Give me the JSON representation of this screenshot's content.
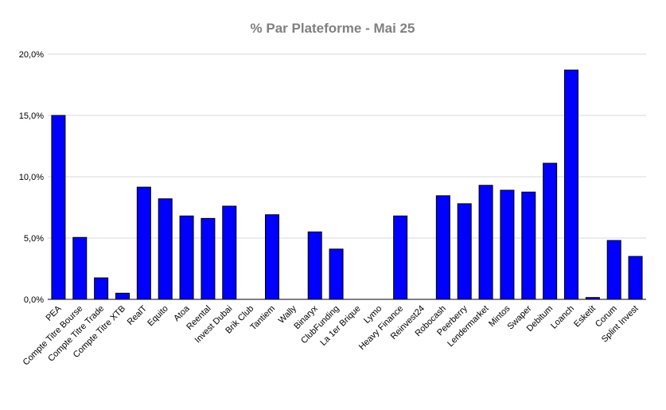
{
  "chart_data": {
    "type": "bar",
    "title": "% Par Plateforme - Mai 25",
    "xlabel": "",
    "ylabel": "",
    "ylim": [
      0,
      20
    ],
    "yticks": [
      0,
      5,
      10,
      15,
      20
    ],
    "ytick_labels": [
      "0,0%",
      "5,0%",
      "10,0%",
      "15,0%",
      "20,0%"
    ],
    "grid": true,
    "legend": "none",
    "bar_color": "#0000ff",
    "categories": [
      "PEA",
      "Compte Titre Bourse",
      "Compte Titre Trade",
      "Compte Titre XTB",
      "RealT",
      "Equito",
      "Atoa",
      "Reental",
      "Invest Dubai",
      "Brik Club",
      "Tantiem",
      "Wally",
      "Binaryx",
      "ClubFunding",
      "La 1er Brique",
      "Lymo",
      "Heavy Finance",
      "Reinvest24",
      "Robocash",
      "Peerberry",
      "Lendermarket",
      "Mintos",
      "Swaper",
      "Debitum",
      "Loanch",
      "Esketit",
      "Corum",
      "Splint Invest"
    ],
    "values": [
      15.0,
      5.05,
      1.75,
      0.5,
      9.15,
      8.2,
      6.8,
      6.6,
      7.6,
      0,
      6.9,
      0,
      5.5,
      4.1,
      0,
      0,
      6.8,
      0,
      8.45,
      7.8,
      9.3,
      8.9,
      8.75,
      11.1,
      18.7,
      0.15,
      4.8,
      3.5
    ]
  }
}
